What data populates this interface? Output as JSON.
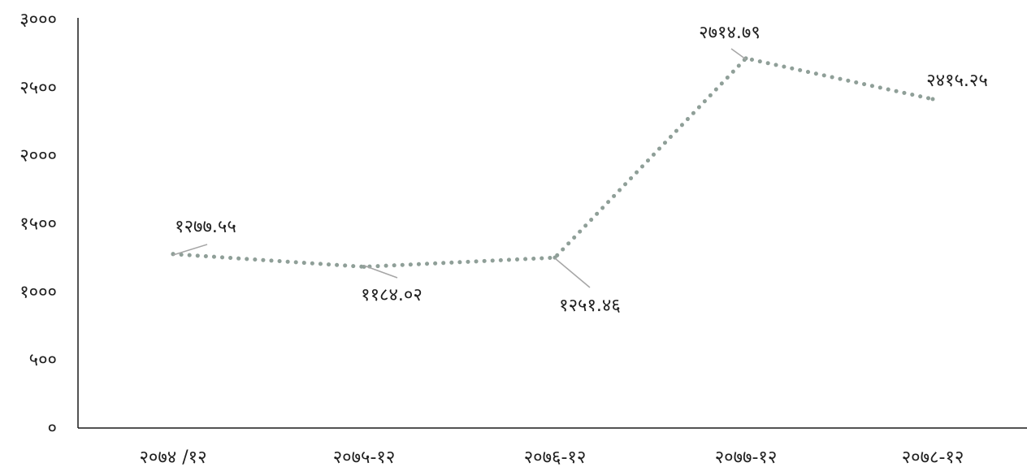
{
  "chart_data": {
    "type": "line",
    "title": "",
    "xlabel": "",
    "ylabel": "",
    "categories": [
      "२०७४/१२",
      "२०७५-१२",
      "२०७६-१२",
      "२०७७-१२",
      "२०७८-१२"
    ],
    "x_tick_labels": [
      "२०७४ /१२",
      "२०७५-१२",
      "२०७६-१२",
      "२०७७-१२",
      "२०७८-१२"
    ],
    "series": [
      {
        "values": [
          1277.55,
          1184.02,
          1251.46,
          2714.79,
          2415.25
        ],
        "data_labels": [
          "१२७७.५५",
          "११८४.०२",
          "१२५१.४६",
          "२७१४.७९",
          "२४१५.२५"
        ],
        "color": "#8f9f98",
        "line_style": "dotted"
      }
    ],
    "ylim": [
      0,
      3000
    ],
    "y_ticks": [
      0,
      500,
      1000,
      1500,
      2000,
      2500,
      3000
    ],
    "y_tick_labels": [
      "०",
      "५००",
      "१०००",
      "१५००",
      "२०००",
      "२५००",
      "३०००"
    ],
    "grid": false,
    "legend": "none"
  }
}
